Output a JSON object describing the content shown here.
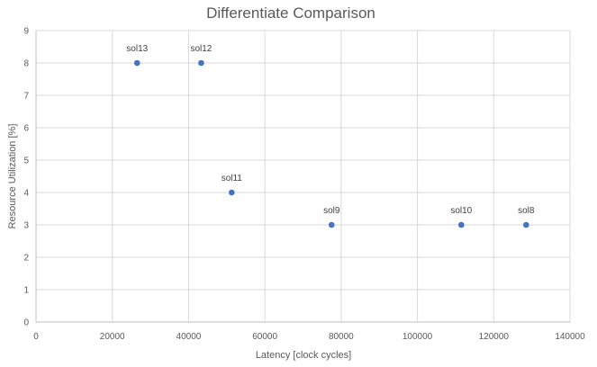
{
  "chart_data": {
    "type": "scatter",
    "title": "Differentiate Comparison",
    "xlabel": "Latency  [clock cycles]",
    "ylabel": "Resource Utilization [%]",
    "xlim": [
      0,
      140000
    ],
    "ylim": [
      0,
      9
    ],
    "xticks": [
      0,
      20000,
      40000,
      60000,
      80000,
      100000,
      120000,
      140000
    ],
    "yticks": [
      0,
      1,
      2,
      3,
      4,
      5,
      6,
      7,
      8,
      9
    ],
    "grid": true,
    "point_color": "#4472c4",
    "points": [
      {
        "label": "sol13",
        "x": 26500,
        "y": 8
      },
      {
        "label": "sol12",
        "x": 43300,
        "y": 8
      },
      {
        "label": "sol11",
        "x": 51300,
        "y": 4
      },
      {
        "label": "sol9",
        "x": 77500,
        "y": 3
      },
      {
        "label": "sol10",
        "x": 111500,
        "y": 3
      },
      {
        "label": "sol8",
        "x": 128500,
        "y": 3
      }
    ]
  }
}
